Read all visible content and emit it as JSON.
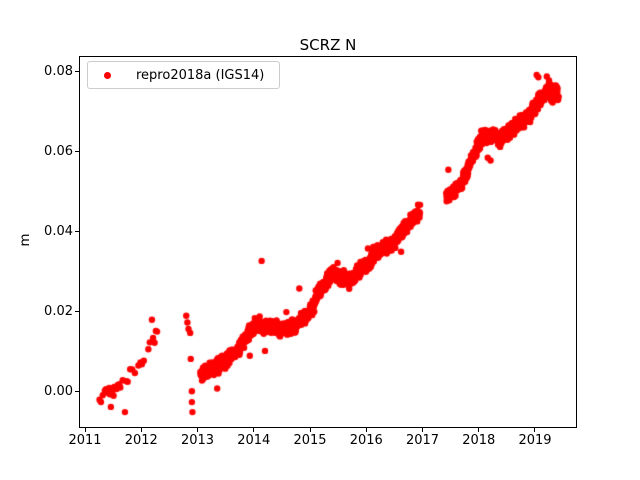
{
  "figure": {
    "background": "#ffffff"
  },
  "chart_data": {
    "type": "scatter",
    "title": "SCRZ N",
    "xlabel": "",
    "ylabel": "m",
    "xlim": [
      2010.911,
      2019.729
    ],
    "ylim": [
      -0.00883,
      0.08368
    ],
    "grid": false,
    "xticks": {
      "values": [
        2011,
        2012,
        2013,
        2014,
        2015,
        2016,
        2017,
        2018,
        2019
      ],
      "labels": [
        "2011",
        "2012",
        "2013",
        "2014",
        "2015",
        "2016",
        "2017",
        "2018",
        "2019"
      ]
    },
    "yticks": {
      "values": [
        0.0,
        0.02,
        0.04,
        0.06,
        0.08
      ],
      "labels": [
        "0.00",
        "0.02",
        "0.04",
        "0.06",
        "0.08"
      ]
    },
    "legend": {
      "position": "upper left",
      "entries": [
        {
          "label": "repro2018a (IGS14)",
          "marker": "circle",
          "color": "#ff0000"
        }
      ]
    },
    "series": [
      {
        "name": "repro2018a (IGS14)",
        "color": "#ff0000",
        "marker": "o",
        "marker_radius_px": 3.2,
        "noise_seed": 42,
        "trend_segments_format": [
          "x_start",
          "x_end",
          "y_start",
          "y_end",
          "n_points",
          "y_half_spread"
        ],
        "trend_segments": [
          [
            2011.25,
            2011.62,
            -0.0012,
            0.0008,
            14,
            0.0026
          ],
          [
            2011.62,
            2012.08,
            0.0015,
            0.0085,
            11,
            0.0016
          ],
          [
            2012.1,
            2012.3,
            0.0105,
            0.0145,
            5,
            0.0014
          ],
          [
            2013.05,
            2013.4,
            0.0045,
            0.0066,
            88,
            0.0023
          ],
          [
            2013.4,
            2013.7,
            0.0068,
            0.01,
            75,
            0.0023
          ],
          [
            2013.7,
            2013.95,
            0.0102,
            0.015,
            63,
            0.0023
          ],
          [
            2013.95,
            2014.12,
            0.016,
            0.0172,
            43,
            0.0021
          ],
          [
            2014.12,
            2014.75,
            0.0162,
            0.0158,
            158,
            0.0023
          ],
          [
            2014.75,
            2015.1,
            0.0166,
            0.022,
            88,
            0.0021
          ],
          [
            2015.1,
            2015.42,
            0.024,
            0.03,
            80,
            0.0022
          ],
          [
            2015.42,
            2015.72,
            0.0292,
            0.0277,
            75,
            0.0022
          ],
          [
            2015.72,
            2016.1,
            0.0282,
            0.033,
            95,
            0.0022
          ],
          [
            2016.1,
            2016.52,
            0.034,
            0.0376,
            105,
            0.0021
          ],
          [
            2016.52,
            2016.96,
            0.038,
            0.0456,
            110,
            0.0022
          ],
          [
            2017.42,
            2017.72,
            0.0487,
            0.0523,
            75,
            0.0019
          ],
          [
            2017.72,
            2018.06,
            0.053,
            0.0638,
            85,
            0.0022
          ],
          [
            2018.06,
            2018.46,
            0.0636,
            0.0638,
            100,
            0.0022
          ],
          [
            2018.46,
            2018.92,
            0.0642,
            0.0692,
            115,
            0.0022
          ],
          [
            2018.92,
            2019.22,
            0.07,
            0.0752,
            75,
            0.0024
          ],
          [
            2019.22,
            2019.42,
            0.0748,
            0.0744,
            55,
            0.0026
          ]
        ],
        "outlier_points": [
          [
            2011.46,
            -0.0038
          ],
          [
            2011.71,
            -0.0051
          ],
          [
            2012.19,
            0.018
          ],
          [
            2012.26,
            0.0152
          ],
          [
            2012.8,
            0.019
          ],
          [
            2012.82,
            0.0173
          ],
          [
            2012.84,
            0.0157
          ],
          [
            2012.87,
            0.0147
          ],
          [
            2012.88,
            0.0082
          ],
          [
            2012.9,
            0.0001
          ],
          [
            2012.9,
            -0.0026
          ],
          [
            2012.91,
            -0.0051
          ],
          [
            2013.08,
            0.0028
          ],
          [
            2013.35,
            0.0008
          ],
          [
            2013.93,
            0.009
          ],
          [
            2014.2,
            0.0102
          ],
          [
            2014.14,
            0.0327
          ],
          [
            2014.58,
            0.0199
          ],
          [
            2014.81,
            0.0258
          ],
          [
            2015.49,
            0.0322
          ],
          [
            2016.03,
            0.0358
          ],
          [
            2016.62,
            0.035
          ],
          [
            2017.46,
            0.0555
          ],
          [
            2018.16,
            0.0585
          ],
          [
            2018.21,
            0.0578
          ],
          [
            2018.38,
            0.0612
          ],
          [
            2019.03,
            0.0792
          ],
          [
            2019.06,
            0.0786
          ],
          [
            2019.21,
            0.0788
          ],
          [
            2019.25,
            0.0778
          ],
          [
            2019.33,
            0.076
          ]
        ]
      }
    ]
  }
}
